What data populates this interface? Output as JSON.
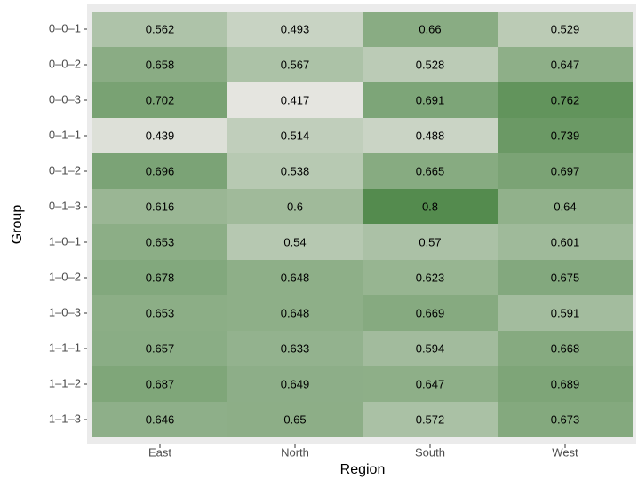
{
  "chart_data": {
    "type": "heatmap",
    "x_label": "Region",
    "y_label": "Group",
    "x_categories": [
      "East",
      "North",
      "South",
      "West"
    ],
    "y_categories": [
      "0–0–1",
      "0–0–2",
      "0–0–3",
      "0–1–1",
      "0–1–2",
      "0–1–3",
      "1–0–1",
      "1–0–2",
      "1–0–3",
      "1–1–1",
      "1–1–2",
      "1–1–3"
    ],
    "values": [
      [
        0.562,
        0.493,
        0.66,
        0.529
      ],
      [
        0.658,
        0.567,
        0.528,
        0.647
      ],
      [
        0.702,
        0.417,
        0.691,
        0.762
      ],
      [
        0.439,
        0.514,
        0.488,
        0.739
      ],
      [
        0.696,
        0.538,
        0.665,
        0.697
      ],
      [
        0.616,
        0.6,
        0.8,
        0.64
      ],
      [
        0.653,
        0.54,
        0.57,
        0.601
      ],
      [
        0.678,
        0.648,
        0.623,
        0.675
      ],
      [
        0.653,
        0.648,
        0.669,
        0.591
      ],
      [
        0.657,
        0.633,
        0.594,
        0.668
      ],
      [
        0.687,
        0.649,
        0.647,
        0.689
      ],
      [
        0.646,
        0.65,
        0.572,
        0.673
      ]
    ],
    "color_scale": {
      "low": "#e5e5e0",
      "high": "#548b4e"
    }
  }
}
